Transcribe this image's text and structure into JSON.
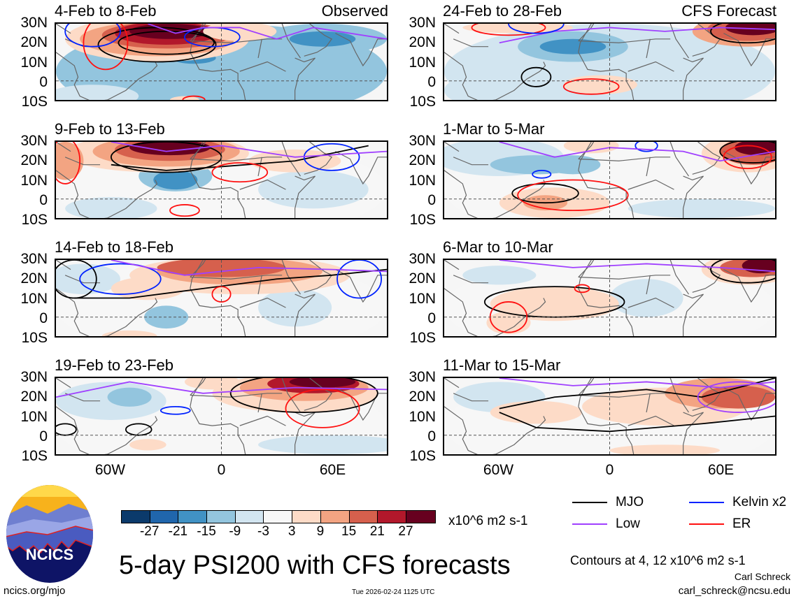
{
  "panels": [
    {
      "title": "4-Feb to 8-Feb",
      "tag": "Observed",
      "fills": [
        [
          0,
          5,
          90,
          25,
          3
        ],
        [
          55,
          22,
          35,
          8,
          3
        ],
        [
          55,
          22,
          18,
          4,
          2
        ],
        [
          -15,
          12,
          22,
          6,
          3
        ],
        [
          -15,
          12,
          12,
          3,
          2
        ],
        [
          -70,
          -8,
          25,
          6,
          4
        ],
        [
          -35,
          22,
          50,
          12,
          6
        ],
        [
          -35,
          22,
          42,
          9,
          7
        ],
        [
          -30,
          24,
          35,
          7,
          8
        ],
        [
          -30,
          25,
          28,
          6,
          9
        ],
        [
          -28,
          26,
          22,
          4,
          10
        ],
        [
          10,
          26,
          20,
          5,
          6
        ],
        [
          -20,
          -10,
          8,
          2,
          6
        ]
      ],
      "contours": [
        [
          "e",
          -35,
          19,
          32,
          9,
          "black"
        ],
        [
          "e",
          -30,
          20,
          26,
          6,
          "black"
        ],
        [
          "e",
          -5,
          23,
          15,
          5,
          "blue"
        ],
        [
          "e",
          -70,
          26,
          15,
          8,
          "blue"
        ],
        [
          "e",
          -63,
          20,
          12,
          14,
          "red"
        ],
        [
          "p",
          [
            [
              -40,
              30
            ],
            [
              -25,
              25
            ],
            [
              -10,
              28
            ],
            [
              10,
              28
            ],
            [
              30,
              22
            ],
            [
              50,
              28
            ],
            [
              90,
              22
            ]
          ],
          "purple"
        ],
        [
          "e",
          -15,
          -10,
          6,
          2,
          "red"
        ]
      ]
    },
    {
      "title": "24-Feb to 28-Feb",
      "tag": "CFS Forecast",
      "fills": [
        [
          0,
          5,
          90,
          25,
          4
        ],
        [
          -20,
          18,
          30,
          8,
          3
        ],
        [
          -20,
          18,
          18,
          4,
          2
        ],
        [
          -70,
          -5,
          20,
          8,
          4
        ],
        [
          75,
          26,
          30,
          8,
          7
        ],
        [
          75,
          27,
          22,
          6,
          8
        ],
        [
          78,
          28,
          15,
          4,
          10
        ],
        [
          -5,
          -2,
          20,
          5,
          6
        ],
        [
          -50,
          28,
          30,
          3,
          6
        ]
      ],
      "contours": [
        [
          "e",
          75,
          26,
          20,
          6,
          "black"
        ],
        [
          "e",
          -40,
          2,
          8,
          5,
          "black"
        ],
        [
          "e",
          -10,
          -3,
          15,
          4,
          "red"
        ],
        [
          "e",
          -55,
          28,
          20,
          4,
          "red"
        ],
        [
          "p",
          [
            [
              -60,
              20
            ],
            [
              -30,
              26
            ],
            [
              0,
              28
            ],
            [
              30,
              26
            ],
            [
              60,
              28
            ],
            [
              90,
              27
            ]
          ],
          "purple"
        ],
        [
          "e",
          -40,
          30,
          15,
          5,
          "blue"
        ]
      ]
    },
    {
      "title": "9-Feb to 13-Feb",
      "fills": [
        [
          0,
          5,
          90,
          25,
          5
        ],
        [
          -25,
          12,
          20,
          8,
          3
        ],
        [
          -25,
          10,
          12,
          5,
          2
        ],
        [
          -60,
          -5,
          25,
          6,
          4
        ],
        [
          50,
          5,
          30,
          10,
          4
        ],
        [
          -35,
          24,
          50,
          10,
          6
        ],
        [
          -30,
          25,
          40,
          8,
          7
        ],
        [
          -28,
          26,
          30,
          6,
          8
        ],
        [
          -28,
          27,
          22,
          4,
          10
        ],
        [
          -85,
          20,
          10,
          10,
          7
        ],
        [
          40,
          20,
          25,
          6,
          6
        ]
      ],
      "contours": [
        [
          "e",
          -30,
          22,
          30,
          8,
          "black"
        ],
        [
          "p",
          [
            [
              -60,
              18
            ],
            [
              -30,
              15
            ],
            [
              0,
              17
            ],
            [
              40,
              20
            ],
            [
              80,
              28
            ]
          ],
          "black"
        ],
        [
          "e",
          -85,
          20,
          8,
          12,
          "red"
        ],
        [
          "e",
          10,
          14,
          15,
          5,
          "red"
        ],
        [
          "e",
          -20,
          -6,
          8,
          3,
          "red"
        ],
        [
          "e",
          60,
          22,
          15,
          7,
          "blue"
        ],
        [
          "p",
          [
            [
              -60,
              30
            ],
            [
              -30,
              25
            ],
            [
              0,
              28
            ],
            [
              40,
              22
            ],
            [
              90,
              25
            ]
          ],
          "purple"
        ]
      ]
    },
    {
      "title": "1-Mar to 5-Mar",
      "fills": [
        [
          0,
          5,
          90,
          25,
          5
        ],
        [
          -60,
          22,
          35,
          10,
          4
        ],
        [
          -40,
          18,
          25,
          5,
          3
        ],
        [
          -20,
          18,
          15,
          5,
          3
        ],
        [
          50,
          -5,
          40,
          5,
          4
        ],
        [
          -30,
          -2,
          30,
          8,
          6
        ],
        [
          -35,
          -2,
          12,
          4,
          7
        ],
        [
          75,
          24,
          25,
          10,
          6
        ],
        [
          78,
          25,
          18,
          7,
          8
        ],
        [
          80,
          27,
          12,
          4,
          10
        ],
        [
          -10,
          28,
          15,
          4,
          6
        ]
      ],
      "contours": [
        [
          "e",
          -35,
          3,
          18,
          5,
          "black"
        ],
        [
          "e",
          78,
          25,
          18,
          6,
          "black"
        ],
        [
          "e",
          -20,
          2,
          30,
          8,
          "red"
        ],
        [
          "e",
          75,
          22,
          13,
          6,
          "red"
        ],
        [
          "e",
          -37,
          13,
          5,
          2,
          "blue"
        ],
        [
          "e",
          20,
          28,
          6,
          3,
          "blue"
        ],
        [
          "p",
          [
            [
              -60,
              30
            ],
            [
              -30,
              22
            ],
            [
              0,
              27
            ],
            [
              40,
              25
            ],
            [
              60,
              20
            ],
            [
              90,
              25
            ]
          ],
          "purple"
        ]
      ]
    },
    {
      "title": "14-Feb to 18-Feb",
      "fills": [
        [
          0,
          5,
          90,
          25,
          5
        ],
        [
          -30,
          0,
          12,
          6,
          3
        ],
        [
          40,
          5,
          20,
          10,
          4
        ],
        [
          -75,
          20,
          20,
          8,
          4
        ],
        [
          10,
          22,
          60,
          10,
          6
        ],
        [
          10,
          24,
          45,
          7,
          7
        ],
        [
          0,
          26,
          35,
          5,
          8
        ],
        [
          -40,
          15,
          20,
          6,
          6
        ],
        [
          -50,
          -10,
          15,
          3,
          6
        ]
      ],
      "contours": [
        [
          "p",
          [
            [
              -80,
              10
            ],
            [
              -50,
              10
            ],
            [
              -10,
              15
            ],
            [
              30,
              20
            ],
            [
              60,
              22
            ],
            [
              90,
              25
            ]
          ],
          "black"
        ],
        [
          "e",
          -80,
          20,
          12,
          10,
          "black"
        ],
        [
          "e",
          0,
          12,
          5,
          4,
          "red"
        ],
        [
          "e",
          -55,
          20,
          22,
          8,
          "blue"
        ],
        [
          "e",
          75,
          20,
          12,
          10,
          "blue"
        ],
        [
          "p",
          [
            [
              -60,
              30
            ],
            [
              -20,
              22
            ],
            [
              20,
              26
            ],
            [
              60,
              25
            ],
            [
              90,
              24
            ]
          ],
          "purple"
        ]
      ]
    },
    {
      "title": "6-Mar to 10-Mar",
      "fills": [
        [
          0,
          5,
          90,
          25,
          5
        ],
        [
          -60,
          22,
          20,
          5,
          4
        ],
        [
          20,
          10,
          20,
          10,
          4
        ],
        [
          -30,
          7,
          35,
          9,
          6
        ],
        [
          -55,
          -3,
          12,
          6,
          6
        ],
        [
          75,
          25,
          25,
          8,
          6
        ],
        [
          78,
          26,
          18,
          5,
          8
        ],
        [
          82,
          27,
          10,
          4,
          10
        ]
      ],
      "contours": [
        [
          "e",
          -30,
          8,
          38,
          8,
          "black"
        ],
        [
          "e",
          -55,
          0,
          10,
          8,
          "red"
        ],
        [
          "e",
          -15,
          15,
          4,
          2,
          "red"
        ],
        [
          "e",
          75,
          25,
          20,
          7,
          "black"
        ],
        [
          "p",
          [
            [
              -60,
              30
            ],
            [
              -20,
              26
            ],
            [
              20,
              28
            ],
            [
              60,
              26
            ],
            [
              90,
              24
            ]
          ],
          "purple"
        ]
      ]
    },
    {
      "title": "19-Feb to 23-Feb",
      "fills": [
        [
          0,
          5,
          90,
          25,
          5
        ],
        [
          -60,
          18,
          30,
          10,
          4
        ],
        [
          -50,
          20,
          12,
          5,
          3
        ],
        [
          60,
          -5,
          40,
          5,
          4
        ],
        [
          40,
          22,
          45,
          10,
          6
        ],
        [
          45,
          25,
          35,
          7,
          7
        ],
        [
          50,
          27,
          25,
          5,
          9
        ],
        [
          55,
          28,
          18,
          3,
          10
        ],
        [
          -40,
          -5,
          10,
          3,
          6
        ],
        [
          -5,
          28,
          15,
          4,
          6
        ]
      ],
      "contours": [
        [
          "e",
          45,
          22,
          40,
          10,
          "black"
        ],
        [
          "e",
          -85,
          3,
          6,
          3,
          "black"
        ],
        [
          "e",
          -45,
          3,
          7,
          3,
          "black"
        ],
        [
          "e",
          -25,
          13,
          8,
          2,
          "blue"
        ],
        [
          "e",
          55,
          14,
          20,
          10,
          "red"
        ],
        [
          "p",
          [
            [
              -90,
              20
            ],
            [
              -50,
              28
            ],
            [
              -10,
              22
            ],
            [
              40,
              25
            ],
            [
              90,
              24
            ]
          ],
          "purple"
        ]
      ]
    },
    {
      "title": "11-Mar to 15-Mar",
      "fills": [
        [
          0,
          5,
          90,
          25,
          5
        ],
        [
          -60,
          20,
          25,
          8,
          4
        ],
        [
          30,
          15,
          45,
          10,
          6
        ],
        [
          60,
          22,
          30,
          8,
          7
        ],
        [
          70,
          20,
          20,
          6,
          8
        ],
        [
          -40,
          12,
          25,
          6,
          6
        ],
        [
          30,
          -8,
          30,
          3,
          6
        ]
      ],
      "contours": [
        [
          "p",
          [
            [
              -60,
              14
            ],
            [
              -30,
              20
            ],
            [
              20,
              24
            ],
            [
              50,
              20
            ],
            [
              90,
              30
            ]
          ],
          "black"
        ],
        [
          "p",
          [
            [
              -60,
              12
            ],
            [
              -40,
              4
            ],
            [
              0,
              2
            ],
            [
              50,
              6
            ],
            [
              90,
              10
            ]
          ],
          "black"
        ],
        [
          "e",
          70,
          20,
          22,
          8,
          "purple"
        ],
        [
          "p",
          [
            [
              -60,
              30
            ],
            [
              -20,
              26
            ],
            [
              20,
              28
            ],
            [
              60,
              25
            ],
            [
              90,
              28
            ]
          ],
          "purple"
        ]
      ]
    }
  ],
  "axes": {
    "lat_labels": [
      "30N",
      "20N",
      "10N",
      "0",
      "10S"
    ],
    "lon_labels": [
      "60W",
      "0",
      "60E"
    ]
  },
  "colorbar": {
    "colors": [
      "#0b3a6b",
      "#2066ac",
      "#4192c4",
      "#93c5de",
      "#d2e5f0",
      "#f7f7f7",
      "#fddbc7",
      "#f3a482",
      "#d6604d",
      "#b2182b",
      "#67001f"
    ],
    "labels": [
      "-27",
      "-21",
      "-15",
      "-9",
      "-3",
      "3",
      "9",
      "15",
      "21",
      "27"
    ],
    "units": "x10^6 m2 s-1"
  },
  "legend": [
    {
      "label": "MJO",
      "color": "#000000"
    },
    {
      "label": "Kelvin x2",
      "color": "#0022ff"
    },
    {
      "label": "Low",
      "color": "#a040ff"
    },
    {
      "label": "ER",
      "color": "#ff1010"
    }
  ],
  "line_colors": {
    "black": "#000000",
    "blue": "#0022ff",
    "purple": "#a040ff",
    "red": "#ff1010"
  },
  "logo": {
    "text": "NCICS"
  },
  "title": "5-day PSI200 with CFS forecasts",
  "contours_note": "Contours at 4, 12 x10^6 m2 s-1",
  "author": "Carl Schreck",
  "email": "carl_schreck@ncsu.edu",
  "url": "ncics.org/mjo",
  "timestamp": "Tue 2026-02-24 1125 UTC"
}
